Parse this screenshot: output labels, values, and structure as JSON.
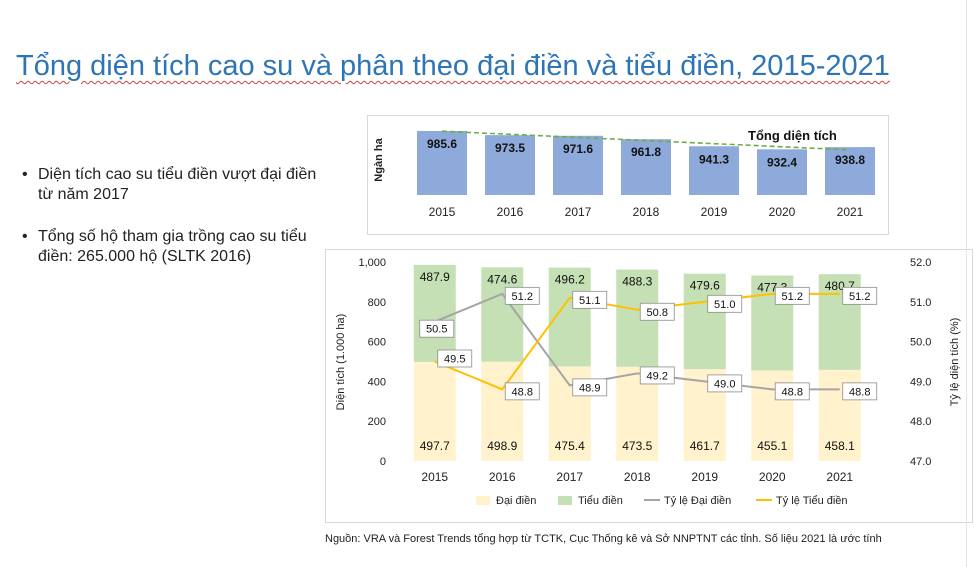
{
  "slide": {
    "title": "Tổng diện tích cao su và phân theo đại điền và tiểu điền, 2015-2021",
    "bullets": [
      "Diện tích cao su tiểu điền vượt đại điền từ năm 2017",
      "Tổng số hộ tham gia trồng cao su tiểu điền: 265.000 hộ (SLTK 2016)"
    ],
    "source": "Nguồn: VRA và Forest Trends tổng hợp từ TCTK, Cục Thống kê và Sở NNPTNT các tỉnh. Số liệu 2021 là ước tính"
  },
  "colors": {
    "total_bar": "#8eaadb",
    "total_trend": "#70ad47",
    "dai_dien": "#fff2cc",
    "tieu_dien": "#c5e0b4",
    "ratio_dai_dien": "#a5a5a5",
    "ratio_tieu_dien": "#ffc000",
    "title": "#2e75b6"
  },
  "chart_data": [
    {
      "type": "bar",
      "title": "Tổng diện tích",
      "ylabel": "Ngàn ha",
      "categories": [
        "2015",
        "2016",
        "2017",
        "2018",
        "2019",
        "2020",
        "2021"
      ],
      "values": [
        985.6,
        973.5,
        971.6,
        961.8,
        941.3,
        932.4,
        938.8
      ],
      "trendline": "dashed linear",
      "ylim": [
        800,
        1000
      ],
      "grid": false
    },
    {
      "type": "bar",
      "stacked": true,
      "categories": [
        "2015",
        "2016",
        "2017",
        "2018",
        "2019",
        "2020",
        "2021"
      ],
      "series": [
        {
          "name": "Đại điền",
          "type": "bar",
          "axis": "left",
          "values": [
            497.7,
            498.9,
            475.4,
            473.5,
            461.7,
            455.1,
            458.1
          ]
        },
        {
          "name": "Tiểu điền",
          "type": "bar",
          "axis": "left",
          "values": [
            487.9,
            474.6,
            496.2,
            488.3,
            479.6,
            477.3,
            480.7
          ]
        },
        {
          "name": "Tỷ lệ Đại điền",
          "type": "line",
          "axis": "right",
          "values": [
            50.5,
            51.2,
            48.9,
            49.2,
            49.0,
            48.8,
            48.8
          ]
        },
        {
          "name": "Tỷ lệ Tiểu điền",
          "type": "line",
          "axis": "right",
          "values": [
            49.5,
            48.8,
            51.1,
            50.8,
            51.0,
            51.2,
            51.2
          ]
        }
      ],
      "ylabel": "Diện tích (1.000 ha)",
      "y2label": "Tỷ lệ diện tích (%)",
      "ylim": [
        0,
        1000
      ],
      "y2lim": [
        47.0,
        52.0
      ],
      "yticks": [
        "0",
        "200",
        "400",
        "600",
        "800",
        "1,000"
      ],
      "y2ticks": [
        "47.0",
        "48.0",
        "49.0",
        "50.0",
        "51.0",
        "52.0"
      ],
      "legend": "bottom",
      "grid": false
    }
  ]
}
